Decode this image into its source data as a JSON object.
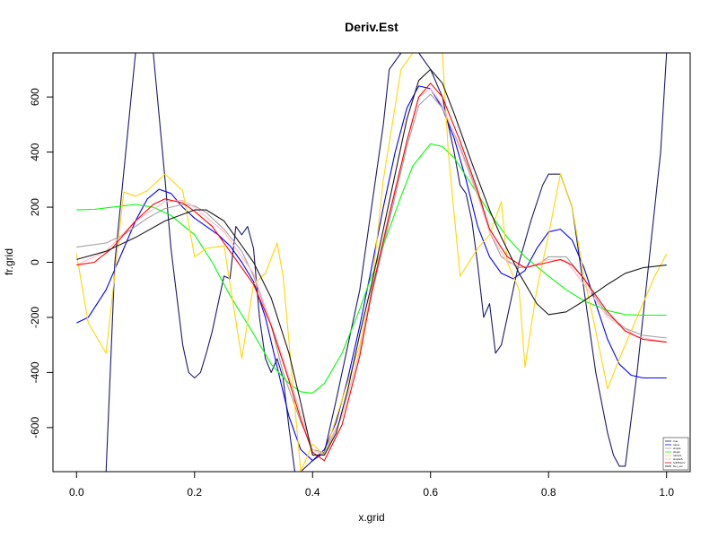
{
  "chart_data": {
    "type": "line",
    "title": "Deriv.Est",
    "xlabel": "x.grid",
    "ylabel": "fr.grid",
    "xlim": [
      -0.04,
      1.04
    ],
    "ylim": [
      -760,
      760
    ],
    "xticks": [
      0.0,
      0.2,
      0.4,
      0.6,
      0.8,
      1.0
    ],
    "xtick_labels": [
      "0.0",
      "0.2",
      "0.4",
      "0.6",
      "0.8",
      "1.0"
    ],
    "yticks": [
      -600,
      -400,
      -200,
      0,
      200,
      400,
      600
    ],
    "ytick_labels": [
      "-600",
      "-400",
      "-200",
      "0",
      "200",
      "400",
      "600"
    ],
    "grid": false,
    "legend_position": "bottom-right",
    "series": [
      {
        "name": "true",
        "color": "#191970",
        "x": [
          0.0,
          0.05,
          0.065,
          0.1,
          0.13,
          0.15,
          0.16,
          0.18,
          0.19,
          0.2,
          0.21,
          0.22,
          0.23,
          0.25,
          0.26,
          0.27,
          0.28,
          0.29,
          0.3,
          0.31,
          0.32,
          0.33,
          0.34,
          0.35,
          0.36,
          0.37,
          0.38,
          0.39,
          0.4,
          0.42,
          0.44,
          0.46,
          0.48,
          0.5,
          0.52,
          0.53,
          0.55,
          0.57,
          0.58,
          0.6,
          0.62,
          0.64,
          0.65,
          0.66,
          0.67,
          0.68,
          0.69,
          0.7,
          0.71,
          0.72,
          0.73,
          0.75,
          0.77,
          0.79,
          0.8,
          0.82,
          0.84,
          0.86,
          0.88,
          0.9,
          0.91,
          0.92,
          0.93,
          0.95,
          0.97,
          0.99,
          1.0
        ],
        "y": [
          null,
          -760,
          0,
          760,
          760,
          300,
          50,
          -300,
          -400,
          -420,
          -400,
          -330,
          -250,
          -50,
          -60,
          130,
          100,
          130,
          50,
          -200,
          -350,
          -400,
          -350,
          -420,
          -600,
          -760,
          -760,
          -740,
          -720,
          -690,
          -500,
          -300,
          -100,
          200,
          500,
          700,
          760,
          760,
          760,
          700,
          600,
          400,
          280,
          250,
          150,
          -10,
          -200,
          -150,
          -330,
          -300,
          -200,
          0,
          150,
          280,
          320,
          320,
          200,
          -100,
          -400,
          -620,
          -700,
          -740,
          -740,
          -400,
          0,
          400,
          760
        ]
      },
      {
        "name": "naive",
        "color": "#0000ff",
        "x": [
          0.0,
          0.02,
          0.05,
          0.08,
          0.1,
          0.12,
          0.14,
          0.16,
          0.18,
          0.2,
          0.22,
          0.24,
          0.26,
          0.28,
          0.3,
          0.32,
          0.34,
          0.36,
          0.38,
          0.4,
          0.42,
          0.44,
          0.46,
          0.48,
          0.5,
          0.52,
          0.54,
          0.56,
          0.58,
          0.6,
          0.62,
          0.64,
          0.66,
          0.68,
          0.7,
          0.72,
          0.74,
          0.76,
          0.78,
          0.8,
          0.82,
          0.84,
          0.86,
          0.88,
          0.9,
          0.92,
          0.94,
          0.96,
          0.98,
          1.0
        ],
        "y": [
          -220,
          -200,
          -100,
          50,
          150,
          230,
          265,
          250,
          200,
          160,
          130,
          100,
          60,
          0,
          -70,
          -200,
          -380,
          -560,
          -680,
          -720,
          -680,
          -580,
          -420,
          -230,
          -20,
          200,
          400,
          560,
          640,
          630,
          560,
          450,
          300,
          130,
          20,
          -40,
          -60,
          -30,
          50,
          110,
          120,
          80,
          -20,
          -150,
          -280,
          -370,
          -410,
          -420,
          -420,
          -420
        ]
      },
      {
        "name": "simple",
        "color": "#a0a0a0",
        "x": [
          0.0,
          0.05,
          0.08,
          0.1,
          0.12,
          0.15,
          0.18,
          0.2,
          0.22,
          0.25,
          0.28,
          0.3,
          0.33,
          0.35,
          0.38,
          0.4,
          0.42,
          0.45,
          0.48,
          0.5,
          0.53,
          0.56,
          0.58,
          0.6,
          0.62,
          0.65,
          0.68,
          0.7,
          0.72,
          0.75,
          0.78,
          0.8,
          0.83,
          0.86,
          0.88,
          0.9,
          0.93,
          0.96,
          1.0
        ],
        "y": [
          55,
          70,
          100,
          130,
          160,
          195,
          210,
          205,
          180,
          120,
          40,
          -50,
          -230,
          -400,
          -580,
          -680,
          -690,
          -560,
          -320,
          -120,
          150,
          420,
          570,
          610,
          560,
          420,
          250,
          110,
          20,
          -20,
          -10,
          20,
          20,
          -60,
          -130,
          -190,
          -240,
          -265,
          -275
        ]
      },
      {
        "name": "plugin",
        "color": "#00ff00",
        "x": [
          0.0,
          0.03,
          0.06,
          0.1,
          0.13,
          0.16,
          0.2,
          0.23,
          0.26,
          0.3,
          0.33,
          0.36,
          0.38,
          0.4,
          0.42,
          0.45,
          0.48,
          0.5,
          0.53,
          0.55,
          0.57,
          0.6,
          0.62,
          0.64,
          0.67,
          0.7,
          0.73,
          0.76,
          0.8,
          0.83,
          0.86,
          0.9,
          0.93,
          0.96,
          1.0
        ],
        "y": [
          190,
          192,
          200,
          210,
          200,
          170,
          100,
          0,
          -120,
          -260,
          -370,
          -440,
          -470,
          -475,
          -440,
          -330,
          -170,
          -50,
          120,
          240,
          350,
          430,
          420,
          380,
          280,
          180,
          90,
          20,
          -50,
          -100,
          -140,
          -175,
          -190,
          -192,
          -192
        ]
      },
      {
        "name": "naiveS",
        "color": "#ffd700",
        "x": [
          0.0,
          0.02,
          0.05,
          0.08,
          0.1,
          0.12,
          0.15,
          0.18,
          0.2,
          0.22,
          0.25,
          0.28,
          0.3,
          0.32,
          0.34,
          0.35,
          0.38,
          0.4,
          0.42,
          0.45,
          0.48,
          0.5,
          0.52,
          0.55,
          0.57,
          0.58,
          0.6,
          0.62,
          0.63,
          0.65,
          0.68,
          0.7,
          0.72,
          0.73,
          0.75,
          0.76,
          0.78,
          0.8,
          0.82,
          0.84,
          0.86,
          0.88,
          0.9,
          0.92,
          0.95,
          0.98,
          1.0
        ],
        "y": [
          30,
          -220,
          -330,
          255,
          240,
          260,
          320,
          260,
          20,
          50,
          60,
          -350,
          -80,
          -40,
          70,
          -50,
          -760,
          -660,
          -700,
          -500,
          -300,
          -100,
          300,
          700,
          760,
          760,
          760,
          760,
          400,
          -50,
          50,
          100,
          220,
          0,
          -100,
          -380,
          -100,
          100,
          320,
          200,
          -50,
          -250,
          -460,
          -350,
          -200,
          -50,
          30
        ]
      },
      {
        "name": "simpleS",
        "color": "#ffb6c1",
        "x": [
          0.0,
          0.05,
          0.1,
          0.15,
          0.18,
          0.2,
          0.25,
          0.3,
          0.35,
          0.38,
          0.4,
          0.42,
          0.45,
          0.48,
          0.5,
          0.53,
          0.56,
          0.58,
          0.6,
          0.62,
          0.65,
          0.68,
          0.7,
          0.73,
          0.76,
          0.8,
          0.83,
          0.86,
          0.9,
          0.95,
          1.0
        ],
        "y": [
          -10,
          40,
          150,
          220,
          225,
          200,
          110,
          -40,
          -350,
          -550,
          -680,
          -700,
          -560,
          -320,
          -100,
          180,
          440,
          600,
          630,
          570,
          410,
          240,
          110,
          0,
          -20,
          10,
          5,
          -80,
          -200,
          -270,
          -290
        ]
      },
      {
        "name": "SJPIDeriv",
        "color": "#ff0000",
        "x": [
          0.0,
          0.03,
          0.06,
          0.1,
          0.13,
          0.15,
          0.18,
          0.2,
          0.23,
          0.26,
          0.3,
          0.33,
          0.36,
          0.38,
          0.4,
          0.42,
          0.45,
          0.48,
          0.5,
          0.53,
          0.56,
          0.58,
          0.6,
          0.62,
          0.65,
          0.68,
          0.7,
          0.73,
          0.76,
          0.8,
          0.82,
          0.84,
          0.86,
          0.9,
          0.93,
          0.96,
          1.0
        ],
        "y": [
          -10,
          0,
          50,
          150,
          210,
          230,
          215,
          185,
          130,
          40,
          -80,
          -230,
          -430,
          -570,
          -690,
          -720,
          -590,
          -340,
          -110,
          170,
          440,
          600,
          650,
          600,
          440,
          260,
          120,
          20,
          -20,
          0,
          10,
          -10,
          -60,
          -180,
          -250,
          -280,
          -290
        ]
      },
      {
        "name": "Der_est",
        "color": "#1a1a1a",
        "x": [
          0.0,
          0.05,
          0.1,
          0.15,
          0.2,
          0.22,
          0.25,
          0.28,
          0.3,
          0.33,
          0.36,
          0.38,
          0.4,
          0.42,
          0.44,
          0.46,
          0.48,
          0.5,
          0.53,
          0.56,
          0.58,
          0.6,
          0.62,
          0.64,
          0.67,
          0.7,
          0.72,
          0.75,
          0.78,
          0.8,
          0.83,
          0.86,
          0.9,
          0.93,
          0.96,
          1.0
        ],
        "y": [
          10,
          40,
          90,
          150,
          190,
          190,
          150,
          60,
          0,
          -130,
          -330,
          -510,
          -700,
          -700,
          -620,
          -460,
          -260,
          -80,
          220,
          520,
          660,
          700,
          650,
          540,
          360,
          190,
          90,
          -40,
          -150,
          -190,
          -180,
          -140,
          -80,
          -40,
          -20,
          -10
        ]
      }
    ]
  }
}
